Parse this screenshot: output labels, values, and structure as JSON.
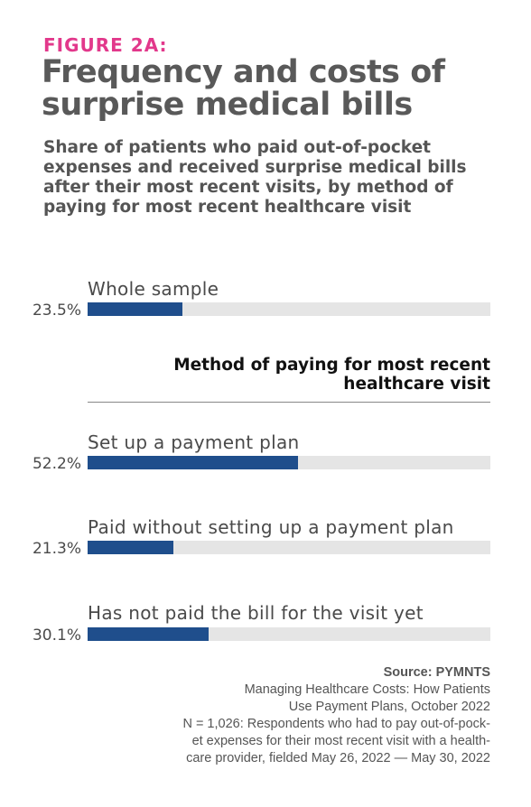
{
  "figure_label": "FIGURE 2A:",
  "title": "Frequency and costs of surprise medical bills",
  "subtitle": "Share of patients who paid out-of-pocket expenses and received surprise medical bills after their most recent visits, by method of paying for most recent healthcare visit",
  "section_heading": "Method of paying for most recent healthcare visit",
  "colors": {
    "bar": "#1f4e8c",
    "track": "#e5e5e5",
    "figure_label": "#e2388b"
  },
  "chart_data": {
    "type": "bar",
    "orientation": "horizontal",
    "title": "Frequency and costs of surprise medical bills",
    "categories": [
      "Whole sample",
      "Set up a payment plan",
      "Paid without setting up a payment plan",
      "Has not paid the bill for the visit yet"
    ],
    "values": [
      23.5,
      52.2,
      21.3,
      30.1
    ],
    "value_labels": [
      "23.5%",
      "52.2%",
      "21.3%",
      "30.1%"
    ],
    "xlim": [
      0,
      100
    ],
    "unit": "%",
    "grid": false,
    "legend": "none"
  },
  "source": {
    "heading": "Source: PYMNTS",
    "lines": [
      "Managing Healthcare Costs: How Patients",
      "Use Payment Plans, October 2022",
      "N = 1,026: Respondents who had to pay out-of-pock-",
      "et expenses for their most recent visit with a health-",
      "care provider, fielded May 26, 2022 — May 30, 2022"
    ]
  }
}
